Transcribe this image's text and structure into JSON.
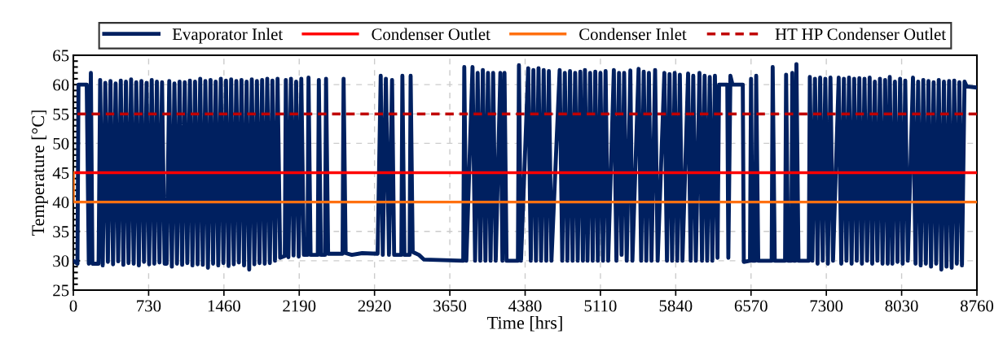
{
  "chart_data": {
    "type": "line",
    "xlabel": "Time [hrs]",
    "ylabel": "Temperature [°C]",
    "xlim": [
      0,
      8760
    ],
    "xticks": [
      0,
      730,
      1460,
      2190,
      2920,
      3650,
      4380,
      5110,
      5840,
      6570,
      7300,
      8030,
      8760
    ],
    "ylim": [
      25,
      65
    ],
    "yticks": [
      25,
      30,
      35,
      40,
      45,
      50,
      55,
      60,
      65
    ],
    "grid": true,
    "legend": "top",
    "marker": "none",
    "series": [
      {
        "name": "Evaporator Inlet",
        "color": "#002060",
        "line_style": "solid",
        "x": [
          0,
          40,
          50,
          130,
          150,
          170,
          185,
          245,
          260,
          285,
          310,
          335,
          360,
          385,
          410,
          435,
          460,
          485,
          510,
          535,
          560,
          585,
          610,
          635,
          660,
          685,
          710,
          735,
          760,
          785,
          810,
          835,
          860,
          885,
          905,
          930,
          955,
          980,
          1005,
          1030,
          1055,
          1080,
          1105,
          1130,
          1155,
          1180,
          1205,
          1230,
          1255,
          1280,
          1305,
          1330,
          1355,
          1380,
          1405,
          1430,
          1455,
          1480,
          1505,
          1530,
          1555,
          1580,
          1605,
          1630,
          1655,
          1680,
          1705,
          1730,
          1755,
          1780,
          1805,
          1830,
          1855,
          1880,
          1905,
          1930,
          1955,
          1980,
          2005,
          2050,
          2060,
          2085,
          2110,
          2135,
          2160,
          2185,
          2210,
          2235,
          2270,
          2280,
          2300,
          2370,
          2380,
          2400,
          2440,
          2450,
          2470,
          2610,
          2620,
          2640,
          2700,
          2800,
          2950,
          2980,
          3000,
          3030,
          3060,
          3090,
          3110,
          3180,
          3190,
          3210,
          3260,
          3270,
          3290,
          3350,
          3400,
          3780,
          3790,
          3810,
          3870,
          3895,
          3920,
          3945,
          3970,
          3995,
          4020,
          4045,
          4070,
          4095,
          4140,
          4160,
          4180,
          4200,
          4310,
          4320,
          4340,
          4410,
          4435,
          4460,
          4485,
          4510,
          4535,
          4560,
          4585,
          4610,
          4635,
          4715,
          4740,
          4765,
          4790,
          4815,
          4840,
          4865,
          4890,
          4915,
          4940,
          4960,
          4985,
          5010,
          5035,
          5060,
          5085,
          5110,
          5135,
          5160,
          5185,
          5240,
          5265,
          5290,
          5315,
          5340,
          5365,
          5400,
          5420,
          5480,
          5505,
          5530,
          5555,
          5580,
          5605,
          5640,
          5665,
          5730,
          5755,
          5780,
          5805,
          5830,
          5855,
          5880,
          5905,
          5960,
          5985,
          6010,
          6035,
          6070,
          6095,
          6120,
          6145,
          6170,
          6195,
          6220,
          6245,
          6260,
          6340,
          6350,
          6370,
          6390,
          6490,
          6500,
          6560,
          6570,
          6585,
          6610,
          6620,
          6640,
          6770,
          6780,
          6800,
          6900,
          6910,
          6930,
          6960,
          6970,
          6985,
          7000,
          7010,
          7030,
          7130,
          7140,
          7165,
          7190,
          7215,
          7240,
          7265,
          7290,
          7315,
          7340,
          7365,
          7420,
          7445,
          7470,
          7495,
          7520,
          7545,
          7570,
          7595,
          7620,
          7645,
          7670,
          7695,
          7720,
          7745,
          7770,
          7795,
          7820,
          7845,
          7870,
          7895,
          7915,
          7940,
          7965,
          7990,
          8015,
          8040,
          8065,
          8090,
          8140,
          8165,
          8190,
          8215,
          8240,
          8265,
          8290,
          8315,
          8340,
          8365,
          8390,
          8415,
          8440,
          8465,
          8490,
          8515,
          8540,
          8565,
          8590,
          8615,
          8640,
          8660,
          8760
        ],
        "values": [
          30,
          29.5,
          60,
          60,
          29.5,
          62,
          29.5,
          29.5,
          60.8,
          29.2,
          60.3,
          29.8,
          60.6,
          29.4,
          60.2,
          29.9,
          60.7,
          29.3,
          60.5,
          29.6,
          60.9,
          29.5,
          60.4,
          29.2,
          60.6,
          29.8,
          60.3,
          29.4,
          60.8,
          29.5,
          60.5,
          29.7,
          60.4,
          29.5,
          29.5,
          60.6,
          29,
          60.2,
          29.5,
          60.5,
          29.3,
          60.4,
          29.6,
          60.7,
          29.2,
          60.5,
          29.4,
          61,
          29.3,
          60.6,
          28.8,
          60.8,
          29.5,
          60.5,
          29.2,
          61,
          29.6,
          60.7,
          29.1,
          60.9,
          29.4,
          60.6,
          29.7,
          60.8,
          29.2,
          60.5,
          28.5,
          60.9,
          29.4,
          60.6,
          29.6,
          60.8,
          29.5,
          61,
          29.6,
          60.7,
          30,
          61,
          30.5,
          30.8,
          60.8,
          30.6,
          61,
          30.9,
          60.5,
          30.7,
          61,
          31,
          31,
          61.2,
          31,
          31,
          60.8,
          31,
          31,
          61,
          31.2,
          31.2,
          61,
          31.3,
          31,
          31.3,
          31.2,
          61.5,
          31,
          61,
          31,
          60.8,
          31,
          31,
          61.5,
          31,
          31,
          61.5,
          31.5,
          31,
          30.2,
          30,
          63,
          30,
          63,
          30,
          62,
          30,
          62.5,
          30,
          62,
          30,
          62,
          30,
          62,
          30,
          62,
          30,
          30,
          63.3,
          30,
          62.8,
          30,
          62.5,
          30,
          62.8,
          30,
          62.5,
          30,
          62.3,
          30,
          62.5,
          30,
          62,
          30,
          62.3,
          30,
          62,
          30,
          62.2,
          30,
          62.5,
          30,
          62,
          30,
          62.2,
          30,
          62,
          30,
          62.3,
          30,
          62.5,
          30,
          62,
          31,
          62,
          30,
          62.4,
          30,
          62.7,
          30,
          62.2,
          30,
          62,
          30,
          62.5,
          30,
          62,
          30,
          61.8,
          30,
          62,
          30,
          61.7,
          30,
          61.9,
          30,
          61.5,
          30,
          62,
          30,
          61.5,
          30,
          61.3,
          30,
          61.5,
          30.5,
          60,
          60,
          30.5,
          61.5,
          60,
          60,
          29.8,
          30,
          61,
          30,
          30,
          61.5,
          30,
          30,
          63,
          30,
          30,
          61.7,
          30,
          30,
          62,
          30,
          30,
          63.5,
          30,
          30,
          61.3,
          30,
          61,
          29.5,
          61.2,
          30,
          61,
          29.5,
          61.2,
          30,
          61.2,
          29.5,
          61,
          30,
          61.2,
          29.5,
          61,
          30,
          61.1,
          29.5,
          61,
          30,
          61.2,
          29.5,
          60.5,
          30,
          61,
          29.5,
          60.8,
          29.5,
          61.3,
          29.5,
          60.5,
          29.8,
          61,
          29.5,
          60.7,
          30,
          61.2,
          29.5,
          60.5,
          29.2,
          60.8,
          29.5,
          60.6,
          29,
          60.4,
          29.5,
          60.8,
          28.5,
          60.5,
          29,
          60.6,
          28.8,
          60.7,
          29.5,
          60.4,
          29.2,
          60.5,
          59.7,
          59.5
        ]
      },
      {
        "name": "Condenser Outlet",
        "color": "#ff0000",
        "line_style": "solid",
        "x": [
          0,
          8760
        ],
        "values": [
          45,
          45
        ]
      },
      {
        "name": "Condenser Inlet",
        "color": "#ff7010",
        "line_style": "solid",
        "x": [
          0,
          0,
          8760
        ],
        "values": [
          45,
          40,
          40
        ]
      },
      {
        "name": "HT HP Condenser Outlet",
        "color": "#c00000",
        "line_style": "dashed",
        "x": [
          40,
          8760
        ],
        "values": [
          55,
          55
        ]
      }
    ]
  }
}
